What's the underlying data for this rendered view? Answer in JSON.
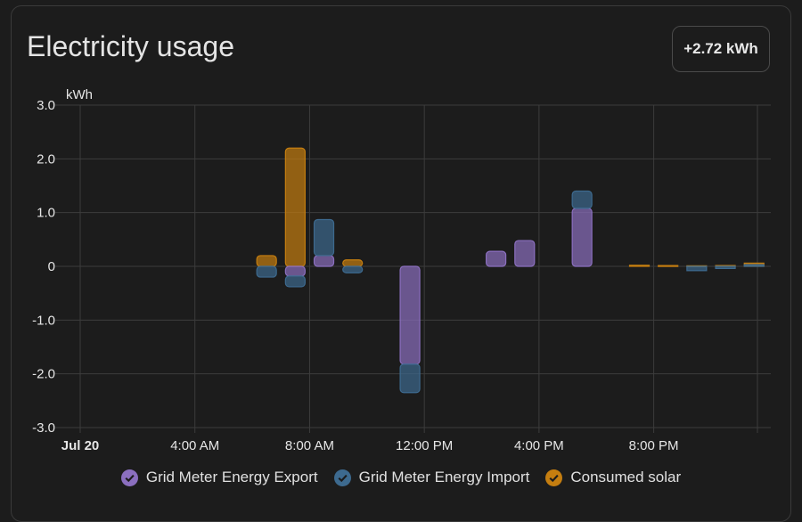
{
  "card": {
    "title": "Electricity usage",
    "total": "+2.72 kWh"
  },
  "legend": [
    {
      "label": "Grid Meter Energy Export",
      "color": "#8b6fbf"
    },
    {
      "label": "Grid Meter Energy Import",
      "color": "#3d6a8f"
    },
    {
      "label": "Consumed solar",
      "color": "#c57e10"
    }
  ],
  "chart_data": {
    "type": "bar",
    "ylabel": "kWh",
    "ylim": [
      -3,
      3
    ],
    "yticks": [
      3,
      2,
      1,
      0,
      -1,
      -2,
      -3
    ],
    "ytick_labels": [
      "3.0",
      "2.0",
      "1.0",
      "0",
      "-1.0",
      "-2.0",
      "-3.0"
    ],
    "xlim_hours": [
      0,
      23.99
    ],
    "xticks": [
      {
        "hour": 0,
        "label": "Jul 20",
        "bold": true
      },
      {
        "hour": 4,
        "label": "4:00 AM",
        "bold": false
      },
      {
        "hour": 8,
        "label": "8:00 AM",
        "bold": false
      },
      {
        "hour": 12,
        "label": "12:00 PM",
        "bold": false
      },
      {
        "hour": 16,
        "label": "4:00 PM",
        "bold": false
      },
      {
        "hour": 20,
        "label": "8:00 PM",
        "bold": false
      }
    ],
    "grid": true,
    "series_colors": {
      "export": "#8b6fbf",
      "import": "#3d6a8f",
      "solar": "#c57e10"
    },
    "bars": [
      {
        "hour": 6.5,
        "stack": [
          {
            "series": "solar",
            "from": 0,
            "to": 0.2
          },
          {
            "series": "import",
            "from": 0,
            "to": -0.2
          }
        ]
      },
      {
        "hour": 7.5,
        "stack": [
          {
            "series": "solar",
            "from": 0,
            "to": 2.2
          },
          {
            "series": "export",
            "from": 0,
            "to": -0.18
          },
          {
            "series": "import",
            "from": -0.18,
            "to": -0.38
          }
        ]
      },
      {
        "hour": 8.5,
        "stack": [
          {
            "series": "export",
            "from": 0,
            "to": 0.2
          },
          {
            "series": "import",
            "from": 0.2,
            "to": 0.87
          }
        ]
      },
      {
        "hour": 9.5,
        "stack": [
          {
            "series": "solar",
            "from": 0,
            "to": 0.12
          },
          {
            "series": "import",
            "from": 0,
            "to": -0.12
          }
        ]
      },
      {
        "hour": 11.5,
        "stack": [
          {
            "series": "export",
            "from": 0,
            "to": -1.82
          },
          {
            "series": "import",
            "from": -1.82,
            "to": -2.35
          }
        ]
      },
      {
        "hour": 14.5,
        "stack": [
          {
            "series": "export",
            "from": 0,
            "to": 0.28
          }
        ]
      },
      {
        "hour": 15.5,
        "stack": [
          {
            "series": "export",
            "from": 0,
            "to": 0.48
          }
        ]
      },
      {
        "hour": 17.5,
        "stack": [
          {
            "series": "export",
            "from": 0,
            "to": 1.08
          },
          {
            "series": "import",
            "from": 1.08,
            "to": 1.4
          }
        ]
      },
      {
        "hour": 19.5,
        "stack": [
          {
            "series": "solar",
            "from": 0,
            "to": 0.02
          }
        ]
      },
      {
        "hour": 20.5,
        "stack": [
          {
            "series": "solar",
            "from": 0,
            "to": 0.015
          }
        ]
      },
      {
        "hour": 21.5,
        "stack": [
          {
            "series": "solar",
            "from": 0,
            "to": 0.01
          },
          {
            "series": "import",
            "from": 0,
            "to": -0.08
          }
        ]
      },
      {
        "hour": 22.5,
        "stack": [
          {
            "series": "solar",
            "from": 0,
            "to": 0.015
          },
          {
            "series": "import",
            "from": 0,
            "to": -0.04
          }
        ]
      },
      {
        "hour": 23.5,
        "stack": [
          {
            "series": "solar",
            "from": 0,
            "to": 0.06
          },
          {
            "series": "import",
            "from": 0,
            "to": 0.03
          }
        ]
      }
    ]
  }
}
